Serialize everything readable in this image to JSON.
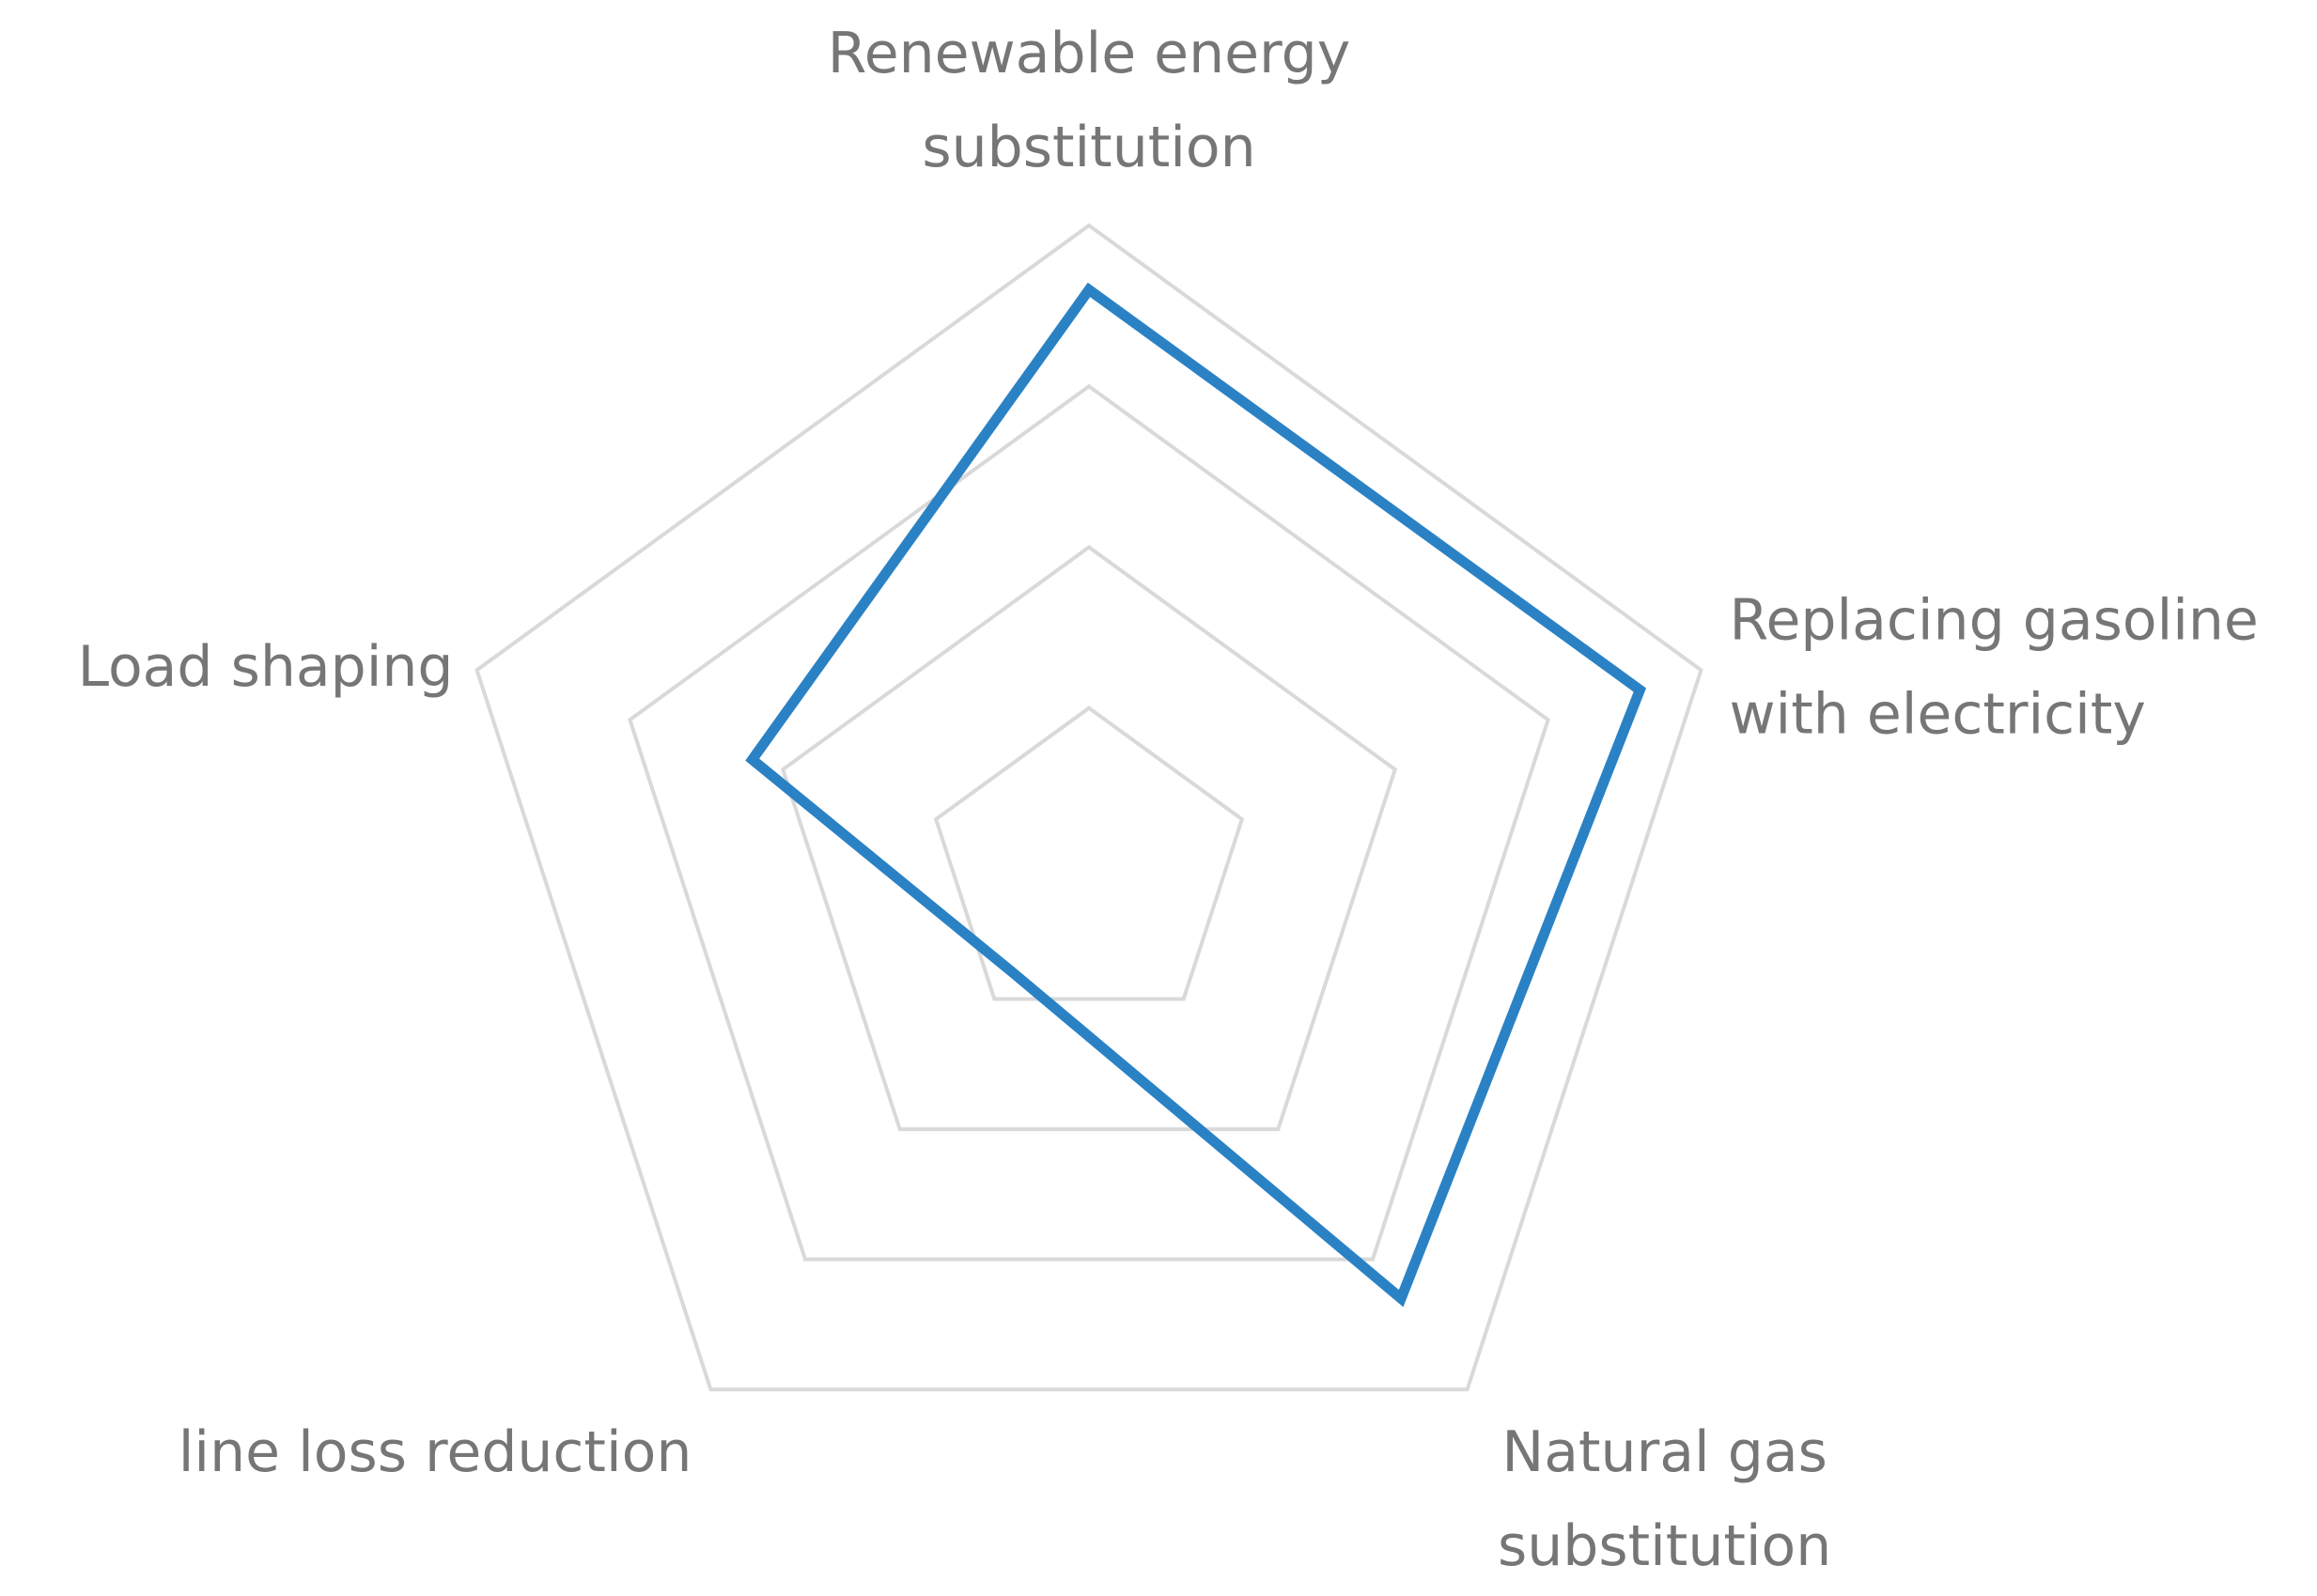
{
  "chart_data": {
    "type": "radar",
    "categories": [
      "Renewable energy substitution",
      "Replacing gasoline with electricity",
      "Natural gas substitution",
      "line loss reduction",
      "Load shaping"
    ],
    "series": [
      {
        "color": "#2a82c5",
        "values": [
          3.6,
          3.6,
          3.3,
          0.8,
          2.2
        ]
      }
    ],
    "ylim": [
      0,
      4
    ],
    "yticks": [
      1,
      2,
      3,
      4
    ],
    "grid": true,
    "grid_color": "#d9d9d9"
  }
}
